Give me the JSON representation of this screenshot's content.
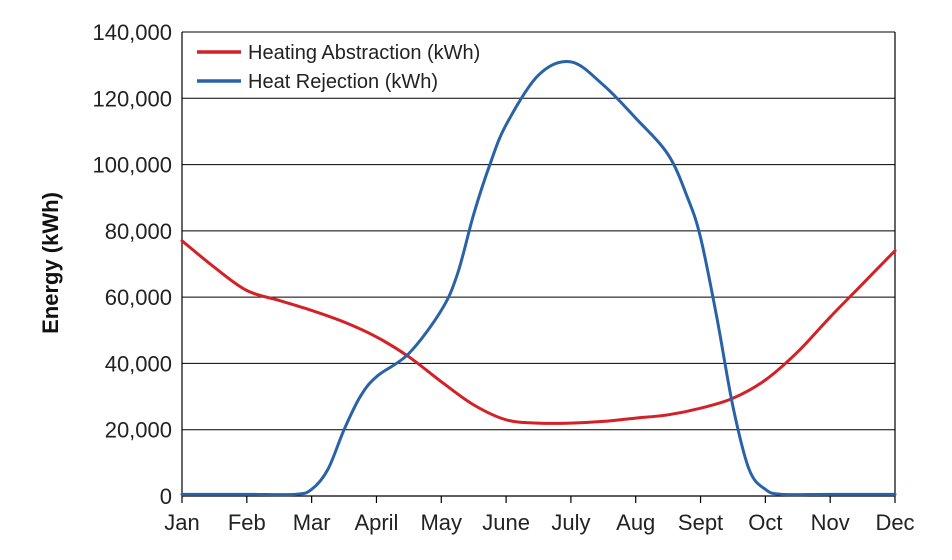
{
  "chart_data": {
    "type": "line",
    "title": "",
    "xlabel": "",
    "ylabel": "Energy (kWh)",
    "categories": [
      "Jan",
      "Feb",
      "Mar",
      "April",
      "May",
      "June",
      "July",
      "Aug",
      "Sept",
      "Oct",
      "Nov",
      "Dec"
    ],
    "x": [
      0,
      1,
      2,
      3,
      4,
      5,
      6,
      7,
      8,
      9,
      10,
      11
    ],
    "ylim": [
      0,
      140000
    ],
    "yticks": [
      0,
      20000,
      40000,
      60000,
      80000,
      100000,
      120000,
      140000
    ],
    "ytick_labels": [
      "0",
      "20,000",
      "40,000",
      "60,000",
      "80,000",
      "100,000",
      "120,000",
      "140,000"
    ],
    "grid": "horizontal",
    "legend_position": "top-left",
    "series": [
      {
        "name": "Heating Abstraction (kWh)",
        "color": "#d42027",
        "points": [
          [
            0,
            77000
          ],
          [
            0.5,
            69000
          ],
          [
            1,
            62000
          ],
          [
            1.5,
            59000
          ],
          [
            2,
            56000
          ],
          [
            2.5,
            52500
          ],
          [
            3,
            48000
          ],
          [
            3.5,
            42000
          ],
          [
            4,
            34500
          ],
          [
            4.5,
            27500
          ],
          [
            5,
            23000
          ],
          [
            5.5,
            22000
          ],
          [
            6,
            22000
          ],
          [
            6.5,
            22500
          ],
          [
            7,
            23500
          ],
          [
            7.5,
            24500
          ],
          [
            8,
            26500
          ],
          [
            8.5,
            29500
          ],
          [
            9,
            35000
          ],
          [
            9.5,
            43500
          ],
          [
            10,
            54000
          ],
          [
            10.5,
            64000
          ],
          [
            11,
            74000
          ]
        ]
      },
      {
        "name": "Heat Rejection (kWh)",
        "color": "#2a62a8",
        "points": [
          [
            0,
            500
          ],
          [
            1,
            500
          ],
          [
            1.75,
            500
          ],
          [
            2,
            2000
          ],
          [
            2.25,
            8000
          ],
          [
            2.5,
            20000
          ],
          [
            2.75,
            30000
          ],
          [
            3,
            36000
          ],
          [
            3.5,
            43000
          ],
          [
            4,
            56000
          ],
          [
            4.25,
            67000
          ],
          [
            4.5,
            85000
          ],
          [
            4.75,
            100000
          ],
          [
            5,
            112000
          ],
          [
            5.5,
            127000
          ],
          [
            6,
            131000
          ],
          [
            6.5,
            124000
          ],
          [
            7,
            114000
          ],
          [
            7.5,
            103000
          ],
          [
            7.8,
            90000
          ],
          [
            8,
            78000
          ],
          [
            8.25,
            54000
          ],
          [
            8.5,
            27000
          ],
          [
            8.75,
            8000
          ],
          [
            9,
            2000
          ],
          [
            9.25,
            500
          ],
          [
            10,
            500
          ],
          [
            11,
            500
          ]
        ]
      }
    ]
  }
}
